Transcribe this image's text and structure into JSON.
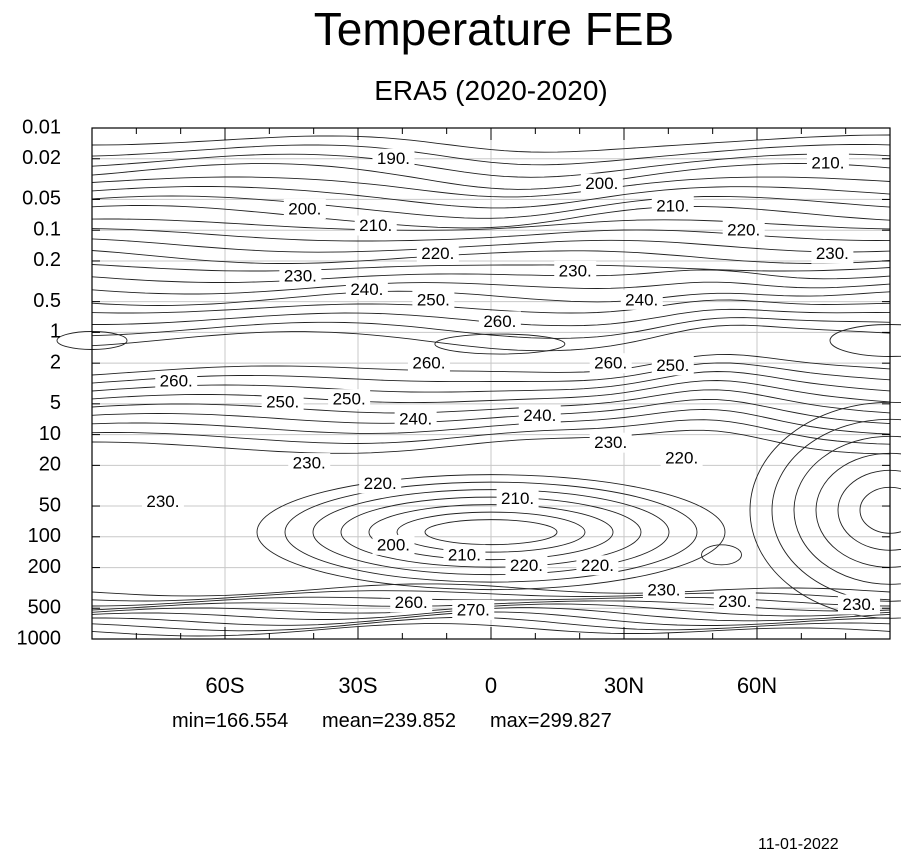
{
  "chart_data": {
    "type": "contour",
    "title": "Temperature FEB",
    "subtitle": "ERA5 (2020-2020)",
    "x_ticks": [
      "60S",
      "30S",
      "0",
      "30N",
      "60N"
    ],
    "x_tick_values": [
      -60,
      -30,
      0,
      30,
      60
    ],
    "x_range": [
      -90,
      90
    ],
    "y_ticks": [
      "0.01",
      "0.02",
      "0.05",
      "0.1",
      "0.2",
      "0.5",
      "1",
      "2",
      "5",
      "10",
      "20",
      "50",
      "100",
      "200",
      "500",
      "1000"
    ],
    "y_scale": "log",
    "y_reversed": true,
    "grid": true,
    "contour_labels": [
      {
        "text": "190.",
        "lat": -22,
        "p": 0.02
      },
      {
        "text": "200.",
        "lat": 25,
        "p": 0.035
      },
      {
        "text": "210.",
        "lat": 76,
        "p": 0.022
      },
      {
        "text": "200.",
        "lat": -42,
        "p": 0.062
      },
      {
        "text": "210.",
        "lat": 41,
        "p": 0.058
      },
      {
        "text": "210.",
        "lat": -26,
        "p": 0.09
      },
      {
        "text": "220.",
        "lat": 57,
        "p": 0.1
      },
      {
        "text": "220.",
        "lat": -12,
        "p": 0.17
      },
      {
        "text": "230.",
        "lat": 77,
        "p": 0.17
      },
      {
        "text": "230.",
        "lat": 19,
        "p": 0.25
      },
      {
        "text": "230.",
        "lat": -43,
        "p": 0.28
      },
      {
        "text": "240.",
        "lat": -28,
        "p": 0.38
      },
      {
        "text": "250.",
        "lat": -13,
        "p": 0.48
      },
      {
        "text": "240.",
        "lat": 34,
        "p": 0.48
      },
      {
        "text": "260.",
        "lat": 2,
        "p": 0.78
      },
      {
        "text": "250.",
        "lat": 41,
        "p": 2.1
      },
      {
        "text": "260.",
        "lat": -14,
        "p": 2.0
      },
      {
        "text": "260.",
        "lat": 27,
        "p": 2.0
      },
      {
        "text": "260.",
        "lat": -71,
        "p": 3.0
      },
      {
        "text": "250.",
        "lat": -47,
        "p": 4.8
      },
      {
        "text": "250.",
        "lat": -32,
        "p": 4.5
      },
      {
        "text": "240.",
        "lat": -17,
        "p": 7.0
      },
      {
        "text": "240.",
        "lat": 11,
        "p": 6.5
      },
      {
        "text": "230.",
        "lat": 27,
        "p": 12
      },
      {
        "text": "220.",
        "lat": 43,
        "p": 17
      },
      {
        "text": "230.",
        "lat": -41,
        "p": 19
      },
      {
        "text": "220.",
        "lat": -25,
        "p": 30
      },
      {
        "text": "230.",
        "lat": -74,
        "p": 45
      },
      {
        "text": "210.",
        "lat": 6,
        "p": 42
      },
      {
        "text": "200.",
        "lat": -22,
        "p": 120
      },
      {
        "text": "210.",
        "lat": -6,
        "p": 150
      },
      {
        "text": "220.",
        "lat": 8,
        "p": 190
      },
      {
        "text": "220.",
        "lat": 24,
        "p": 190
      },
      {
        "text": "230.",
        "lat": 39,
        "p": 330
      },
      {
        "text": "230.",
        "lat": 55,
        "p": 430
      },
      {
        "text": "230.",
        "lat": 83,
        "p": 460
      },
      {
        "text": "260.",
        "lat": -18,
        "p": 440
      },
      {
        "text": "270.",
        "lat": -4,
        "p": 520
      }
    ]
  },
  "stats": {
    "min": "min=166.554",
    "mean": "mean=239.852",
    "max": "max=299.827"
  },
  "date": "11-01-2022"
}
